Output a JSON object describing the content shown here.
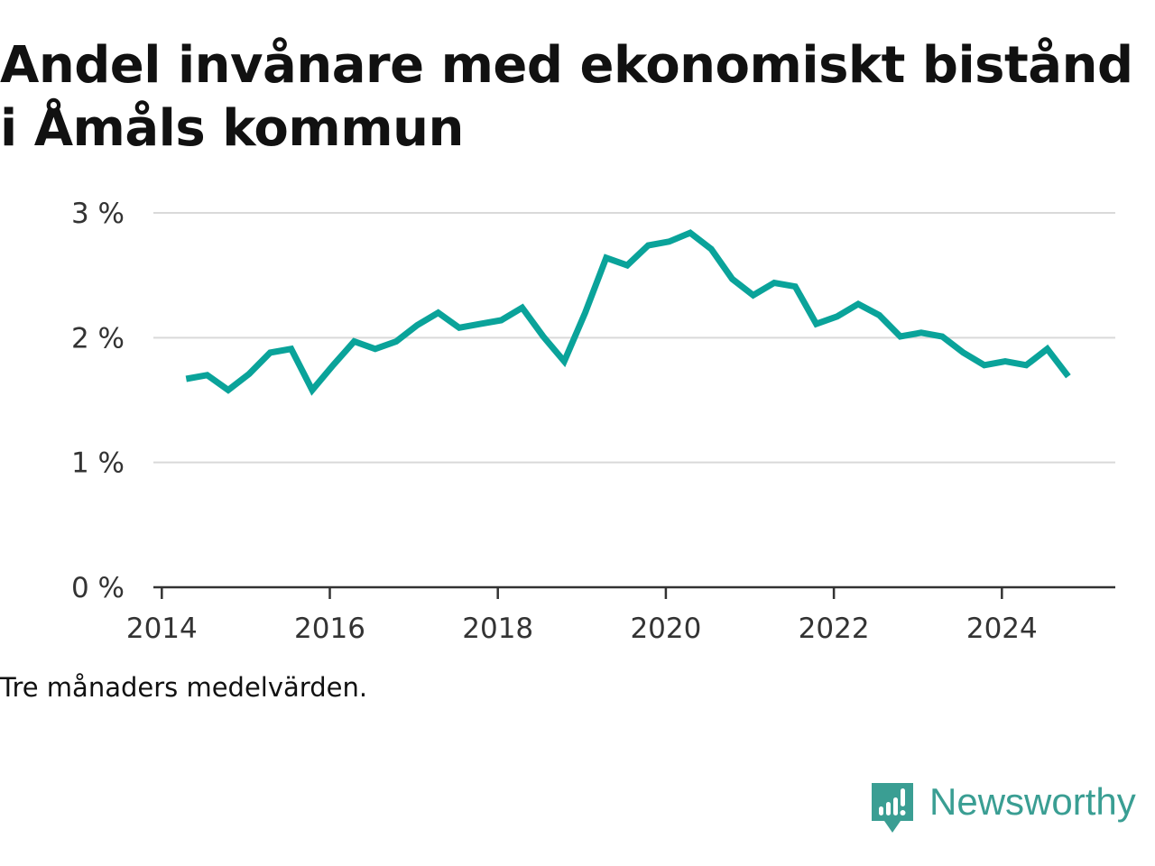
{
  "title": "Andel invånare med ekonomiskt bistånd i Åmåls kommun",
  "note": "Tre månaders medelvärden.",
  "brand": {
    "name": "Newsworthy",
    "icon": "newsworthy-logo-icon",
    "color": "#3a9e93"
  },
  "chart_data": {
    "type": "line",
    "title": "Andel invånare med ekonomiskt bistånd i Åmåls kommun",
    "xlabel": "",
    "ylabel": "",
    "xlim": [
      2013.9,
      2025.35
    ],
    "ylim": [
      0,
      3
    ],
    "x_ticks": [
      2014,
      2016,
      2018,
      2020,
      2022,
      2024
    ],
    "y_ticks": [
      0,
      1,
      2,
      3
    ],
    "y_tick_labels": [
      "0 %",
      "1 %",
      "2 %",
      "3 %"
    ],
    "grid": "horizontal",
    "line_color": "#0aa39a",
    "series": [
      {
        "x": [
          2014.29,
          2014.54,
          2014.79,
          2015.04,
          2015.29,
          2015.54,
          2015.79,
          2016.04,
          2016.29,
          2016.54,
          2016.79,
          2017.04,
          2017.29,
          2017.54,
          2017.79,
          2018.04,
          2018.29,
          2018.54,
          2018.79,
          2019.04,
          2019.29,
          2019.54,
          2019.79,
          2020.04,
          2020.29,
          2020.54,
          2020.79,
          2021.04,
          2021.29,
          2021.54,
          2021.79,
          2022.04,
          2022.29,
          2022.54,
          2022.79,
          2023.04,
          2023.29,
          2023.54,
          2023.79,
          2024.04,
          2024.29,
          2024.54,
          2024.79
        ],
        "values": [
          1.67,
          1.7,
          1.58,
          1.71,
          1.88,
          1.91,
          1.58,
          1.78,
          1.97,
          1.91,
          1.97,
          2.1,
          2.2,
          2.08,
          2.11,
          2.14,
          2.24,
          2.01,
          1.81,
          2.2,
          2.64,
          2.58,
          2.74,
          2.77,
          2.84,
          2.71,
          2.47,
          2.34,
          2.44,
          2.41,
          2.11,
          2.17,
          2.27,
          2.18,
          2.01,
          2.04,
          2.01,
          1.88,
          1.78,
          1.81,
          1.78,
          1.91,
          1.69
        ]
      }
    ]
  }
}
